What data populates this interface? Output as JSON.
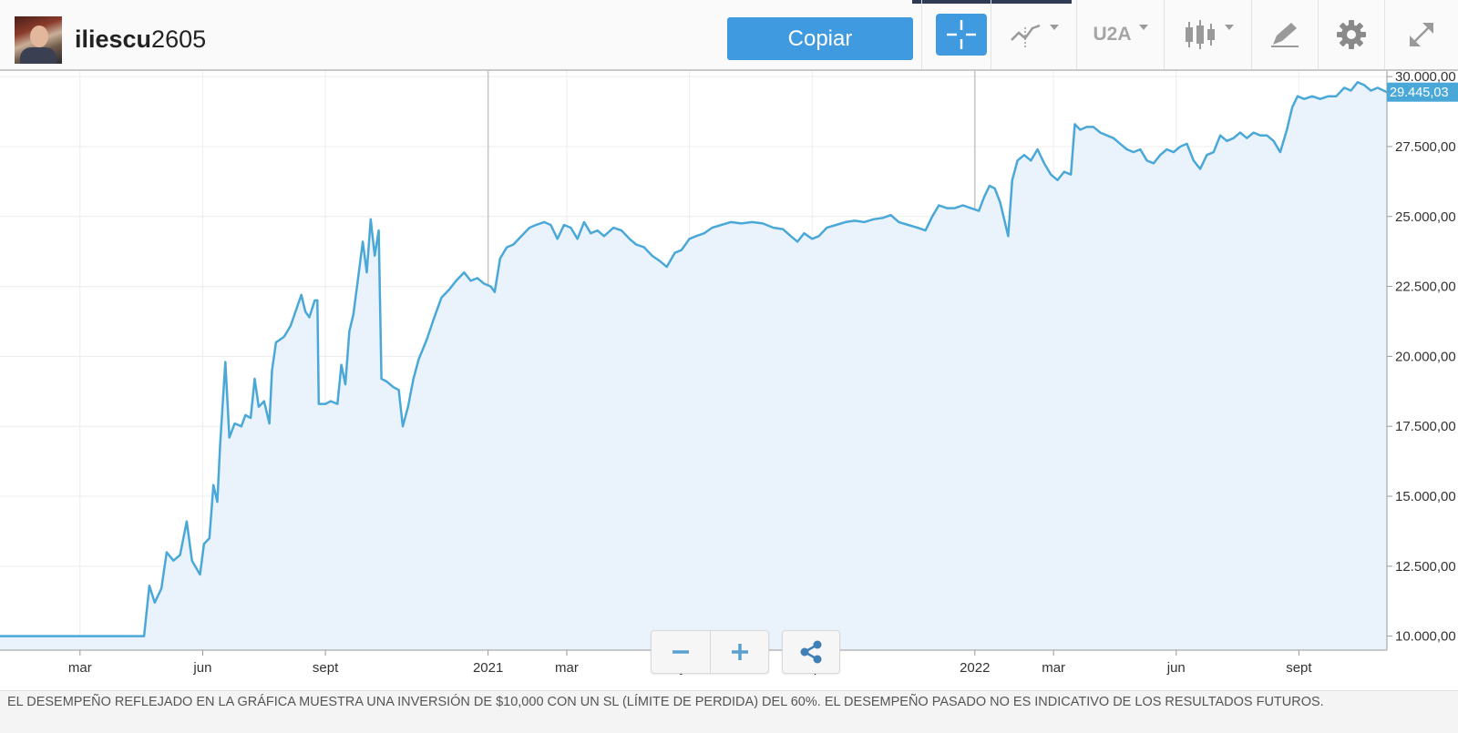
{
  "header": {
    "username_bold": "iliescu",
    "username_rest": "2605",
    "copy_label": "Copiar",
    "interval_label": "U2A"
  },
  "colors": {
    "accent": "#3f9ae0",
    "line": "#4aa8d8",
    "area": "#eaf3fb"
  },
  "icons": [
    "crosshair-icon",
    "line-chart-icon",
    "candlestick-icon",
    "draw-icon",
    "gear-icon",
    "expand-icon",
    "minus-icon",
    "plus-icon",
    "share-icon"
  ],
  "chart_data": {
    "type": "area",
    "y_tick_labels": [
      "10.000,00",
      "12.500,00",
      "15.000,00",
      "17.500,00",
      "20.000,00",
      "22.500,00",
      "25.000,00",
      "27.500,00",
      "30.000,00"
    ],
    "y_ticks": [
      10000,
      12500,
      15000,
      17500,
      20000,
      22500,
      25000,
      27500,
      30000
    ],
    "ylim": [
      9500,
      30200
    ],
    "xlim": [
      "2020-01-01",
      "2022-11-06"
    ],
    "x_ticks": [
      {
        "date": "2020-03-01",
        "label": "mar"
      },
      {
        "date": "2020-06-01",
        "label": "jun"
      },
      {
        "date": "2020-09-01",
        "label": "sept"
      },
      {
        "date": "2021-01-01",
        "label": "2021"
      },
      {
        "date": "2021-03-01",
        "label": "mar"
      },
      {
        "date": "2021-06-01",
        "label": "jun"
      },
      {
        "date": "2021-09-01",
        "label": "sept"
      },
      {
        "date": "2022-01-01",
        "label": "2022"
      },
      {
        "date": "2022-03-01",
        "label": "mar"
      },
      {
        "date": "2022-06-01",
        "label": "jun"
      },
      {
        "date": "2022-09-01",
        "label": "sept"
      }
    ],
    "year_ticks": [
      "2021-01-01",
      "2022-01-01"
    ],
    "last_value_label": "29.445,03",
    "series": [
      {
        "points": [
          [
            "2020-01-01",
            10000
          ],
          [
            "2020-04-18",
            10000
          ],
          [
            "2020-04-22",
            11800
          ],
          [
            "2020-04-26",
            11200
          ],
          [
            "2020-05-01",
            11700
          ],
          [
            "2020-05-05",
            13000
          ],
          [
            "2020-05-10",
            12700
          ],
          [
            "2020-05-15",
            12900
          ],
          [
            "2020-05-20",
            14100
          ],
          [
            "2020-05-24",
            12700
          ],
          [
            "2020-05-30",
            12200
          ],
          [
            "2020-06-02",
            13300
          ],
          [
            "2020-06-06",
            13500
          ],
          [
            "2020-06-09",
            15400
          ],
          [
            "2020-06-12",
            14800
          ],
          [
            "2020-06-14",
            16800
          ],
          [
            "2020-06-16",
            18300
          ],
          [
            "2020-06-18",
            19800
          ],
          [
            "2020-06-21",
            17100
          ],
          [
            "2020-06-25",
            17600
          ],
          [
            "2020-06-30",
            17500
          ],
          [
            "2020-07-03",
            17900
          ],
          [
            "2020-07-07",
            17800
          ],
          [
            "2020-07-10",
            19200
          ],
          [
            "2020-07-13",
            18200
          ],
          [
            "2020-07-17",
            18400
          ],
          [
            "2020-07-21",
            17600
          ],
          [
            "2020-07-23",
            19500
          ],
          [
            "2020-07-26",
            20500
          ],
          [
            "2020-08-01",
            20700
          ],
          [
            "2020-08-06",
            21100
          ],
          [
            "2020-08-11",
            21800
          ],
          [
            "2020-08-14",
            22200
          ],
          [
            "2020-08-17",
            21600
          ],
          [
            "2020-08-20",
            21400
          ],
          [
            "2020-08-24",
            22000
          ],
          [
            "2020-08-26",
            22000
          ],
          [
            "2020-08-27",
            18300
          ],
          [
            "2020-09-01",
            18300
          ],
          [
            "2020-09-05",
            18400
          ],
          [
            "2020-09-10",
            18300
          ],
          [
            "2020-09-13",
            19700
          ],
          [
            "2020-09-16",
            19000
          ],
          [
            "2020-09-19",
            20900
          ],
          [
            "2020-09-22",
            21500
          ],
          [
            "2020-09-25",
            22600
          ],
          [
            "2020-09-29",
            24100
          ],
          [
            "2020-10-02",
            23000
          ],
          [
            "2020-10-05",
            24900
          ],
          [
            "2020-10-08",
            23600
          ],
          [
            "2020-10-11",
            24500
          ],
          [
            "2020-10-13",
            19200
          ],
          [
            "2020-10-17",
            19100
          ],
          [
            "2020-10-22",
            18900
          ],
          [
            "2020-10-26",
            18800
          ],
          [
            "2020-10-29",
            17500
          ],
          [
            "2020-11-02",
            18200
          ],
          [
            "2020-11-06",
            19200
          ],
          [
            "2020-11-10",
            19900
          ],
          [
            "2020-11-16",
            20600
          ],
          [
            "2020-11-21",
            21300
          ],
          [
            "2020-11-27",
            22100
          ],
          [
            "2020-12-03",
            22400
          ],
          [
            "2020-12-08",
            22700
          ],
          [
            "2020-12-14",
            23000
          ],
          [
            "2020-12-19",
            22700
          ],
          [
            "2020-12-24",
            22800
          ],
          [
            "2020-12-29",
            22600
          ],
          [
            "2021-01-03",
            22500
          ],
          [
            "2021-01-06",
            22300
          ],
          [
            "2021-01-10",
            23500
          ],
          [
            "2021-01-15",
            23900
          ],
          [
            "2021-01-20",
            24000
          ],
          [
            "2021-01-26",
            24300
          ],
          [
            "2021-02-01",
            24600
          ],
          [
            "2021-02-06",
            24700
          ],
          [
            "2021-02-12",
            24800
          ],
          [
            "2021-02-17",
            24700
          ],
          [
            "2021-02-22",
            24200
          ],
          [
            "2021-02-27",
            24700
          ],
          [
            "2021-03-04",
            24600
          ],
          [
            "2021-03-09",
            24200
          ],
          [
            "2021-03-14",
            24800
          ],
          [
            "2021-03-19",
            24400
          ],
          [
            "2021-03-24",
            24500
          ],
          [
            "2021-03-29",
            24300
          ],
          [
            "2021-04-05",
            24600
          ],
          [
            "2021-04-11",
            24500
          ],
          [
            "2021-04-17",
            24200
          ],
          [
            "2021-04-22",
            24000
          ],
          [
            "2021-04-28",
            23900
          ],
          [
            "2021-05-04",
            23600
          ],
          [
            "2021-05-10",
            23400
          ],
          [
            "2021-05-15",
            23200
          ],
          [
            "2021-05-21",
            23700
          ],
          [
            "2021-05-26",
            23800
          ],
          [
            "2021-06-01",
            24200
          ],
          [
            "2021-06-06",
            24300
          ],
          [
            "2021-06-12",
            24400
          ],
          [
            "2021-06-18",
            24600
          ],
          [
            "2021-06-25",
            24700
          ],
          [
            "2021-07-02",
            24800
          ],
          [
            "2021-07-10",
            24750
          ],
          [
            "2021-07-18",
            24800
          ],
          [
            "2021-07-26",
            24750
          ],
          [
            "2021-08-03",
            24600
          ],
          [
            "2021-08-10",
            24550
          ],
          [
            "2021-08-16",
            24300
          ],
          [
            "2021-08-21",
            24100
          ],
          [
            "2021-08-26",
            24400
          ],
          [
            "2021-09-01",
            24200
          ],
          [
            "2021-09-06",
            24300
          ],
          [
            "2021-09-12",
            24600
          ],
          [
            "2021-09-19",
            24700
          ],
          [
            "2021-09-26",
            24800
          ],
          [
            "2021-10-03",
            24850
          ],
          [
            "2021-10-10",
            24800
          ],
          [
            "2021-10-17",
            24900
          ],
          [
            "2021-10-24",
            24950
          ],
          [
            "2021-10-30",
            25050
          ],
          [
            "2021-11-05",
            24800
          ],
          [
            "2021-11-12",
            24700
          ],
          [
            "2021-11-19",
            24600
          ],
          [
            "2021-11-25",
            24500
          ],
          [
            "2021-11-30",
            25000
          ],
          [
            "2021-12-05",
            25400
          ],
          [
            "2021-12-11",
            25300
          ],
          [
            "2021-12-17",
            25300
          ],
          [
            "2021-12-23",
            25400
          ],
          [
            "2021-12-29",
            25300
          ],
          [
            "2022-01-04",
            25200
          ],
          [
            "2022-01-08",
            25700
          ],
          [
            "2022-01-12",
            26100
          ],
          [
            "2022-01-16",
            26000
          ],
          [
            "2022-01-20",
            25500
          ],
          [
            "2022-01-23",
            24900
          ],
          [
            "2022-01-26",
            24300
          ],
          [
            "2022-01-29",
            26300
          ],
          [
            "2022-02-02",
            27000
          ],
          [
            "2022-02-07",
            27200
          ],
          [
            "2022-02-12",
            27000
          ],
          [
            "2022-02-17",
            27400
          ],
          [
            "2022-02-22",
            26900
          ],
          [
            "2022-02-27",
            26500
          ],
          [
            "2022-03-04",
            26300
          ],
          [
            "2022-03-09",
            26600
          ],
          [
            "2022-03-14",
            26500
          ],
          [
            "2022-03-17",
            28300
          ],
          [
            "2022-03-21",
            28100
          ],
          [
            "2022-03-26",
            28200
          ],
          [
            "2022-03-31",
            28200
          ],
          [
            "2022-04-05",
            28000
          ],
          [
            "2022-04-10",
            27900
          ],
          [
            "2022-04-15",
            27800
          ],
          [
            "2022-04-20",
            27600
          ],
          [
            "2022-04-25",
            27400
          ],
          [
            "2022-04-30",
            27300
          ],
          [
            "2022-05-05",
            27400
          ],
          [
            "2022-05-10",
            27000
          ],
          [
            "2022-05-15",
            26900
          ],
          [
            "2022-05-20",
            27200
          ],
          [
            "2022-05-25",
            27400
          ],
          [
            "2022-05-30",
            27300
          ],
          [
            "2022-06-04",
            27500
          ],
          [
            "2022-06-09",
            27600
          ],
          [
            "2022-06-14",
            27000
          ],
          [
            "2022-06-19",
            26700
          ],
          [
            "2022-06-24",
            27200
          ],
          [
            "2022-06-29",
            27300
          ],
          [
            "2022-07-04",
            27900
          ],
          [
            "2022-07-09",
            27700
          ],
          [
            "2022-07-14",
            27800
          ],
          [
            "2022-07-19",
            28000
          ],
          [
            "2022-07-24",
            27800
          ],
          [
            "2022-07-29",
            28000
          ],
          [
            "2022-08-03",
            27900
          ],
          [
            "2022-08-08",
            27900
          ],
          [
            "2022-08-13",
            27700
          ],
          [
            "2022-08-18",
            27300
          ],
          [
            "2022-08-23",
            28100
          ],
          [
            "2022-08-27",
            28900
          ],
          [
            "2022-08-31",
            29300
          ],
          [
            "2022-09-05",
            29200
          ],
          [
            "2022-09-11",
            29300
          ],
          [
            "2022-09-17",
            29200
          ],
          [
            "2022-09-23",
            29300
          ],
          [
            "2022-09-29",
            29300
          ],
          [
            "2022-10-05",
            29600
          ],
          [
            "2022-10-10",
            29500
          ],
          [
            "2022-10-15",
            29800
          ],
          [
            "2022-10-20",
            29700
          ],
          [
            "2022-10-25",
            29500
          ],
          [
            "2022-10-30",
            29600
          ],
          [
            "2022-11-06",
            29445
          ]
        ]
      }
    ]
  },
  "footer": {
    "disclaimer": "EL DESEMPEÑO REFLEJADO EN LA GRÁFICA MUESTRA UNA INVERSIÓN DE $10,000 CON UN SL (LÍMITE DE PERDIDA) DEL 60%. EL DESEMPEÑO PASADO NO ES INDICATIVO DE LOS RESULTADOS FUTUROS."
  }
}
